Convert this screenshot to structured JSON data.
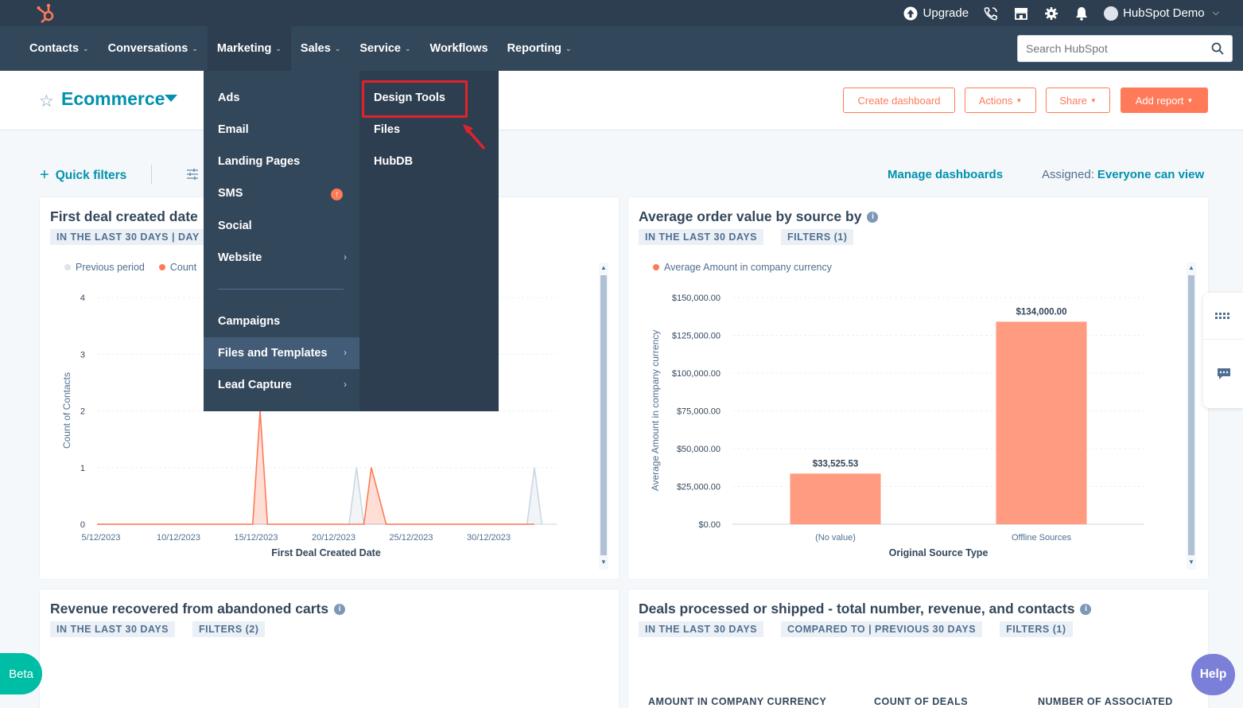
{
  "topbar": {
    "upgrade_label": "Upgrade",
    "account_label": "HubSpot Demo"
  },
  "nav": {
    "items": [
      {
        "label": "Contacts",
        "has_menu": true
      },
      {
        "label": "Conversations",
        "has_menu": true
      },
      {
        "label": "Marketing",
        "has_menu": true,
        "active": true
      },
      {
        "label": "Sales",
        "has_menu": true
      },
      {
        "label": "Service",
        "has_menu": true
      },
      {
        "label": "Workflows",
        "has_menu": false
      },
      {
        "label": "Reporting",
        "has_menu": true
      }
    ],
    "search_placeholder": "Search HubSpot"
  },
  "header": {
    "dashboard_title": "Ecommerce",
    "buttons": {
      "create": "Create dashboard",
      "actions": "Actions",
      "share": "Share",
      "add_report": "Add report"
    }
  },
  "toolbar": {
    "quick_filters": "Quick filters",
    "manage": "Manage dashboards",
    "assigned_label": "Assigned:",
    "assigned_value": "Everyone can view"
  },
  "marketing_menu": {
    "left": [
      {
        "label": "Ads"
      },
      {
        "label": "Email"
      },
      {
        "label": "Landing Pages"
      },
      {
        "label": "SMS"
      },
      {
        "label": "Social"
      },
      {
        "label": "Website"
      },
      {
        "label": "Campaigns"
      },
      {
        "label": "Files and Templates"
      },
      {
        "label": "Lead Capture"
      }
    ],
    "right": [
      {
        "label": "Design Tools"
      },
      {
        "label": "Files"
      },
      {
        "label": "HubDB"
      }
    ]
  },
  "cards": {
    "deals": {
      "title": "First deal created date",
      "tag1": "IN THE LAST 30 DAYS | DAY",
      "legend_prev": "Previous period",
      "legend_count": "Count",
      "ylabel": "Count of Contacts",
      "xlabel": "First Deal Created Date"
    },
    "aov": {
      "title": "Average order value by source by",
      "tag1": "IN THE LAST 30 DAYS",
      "tag2": "FILTERS (1)",
      "legend": "Average Amount in company currency",
      "ylabel": "Average Amount in company currency",
      "xlabel": "Original Source Type"
    },
    "revenue": {
      "title": "Revenue recovered from abandoned carts",
      "tag1": "IN THE LAST 30 DAYS",
      "tag2": "FILTERS (2)"
    },
    "processed": {
      "title": "Deals processed or shipped - total number, revenue, and contacts",
      "tag1": "IN THE LAST 30 DAYS",
      "tag2": "COMPARED TO | PREVIOUS 30 DAYS",
      "tag3": "FILTERS (1)",
      "col1": "AMOUNT IN COMPANY CURRENCY",
      "col2": "COUNT OF DEALS",
      "col3": "NUMBER OF ASSOCIATED"
    }
  },
  "chart_data": [
    {
      "type": "area",
      "title": "First deal created date",
      "xlabel": "First Deal Created Date",
      "ylabel": "Count of Contacts",
      "yticks": [
        "0",
        "1",
        "2",
        "3",
        "4"
      ],
      "ylim": [
        0,
        4
      ],
      "xticks": [
        "5/12/2023",
        "10/12/2023",
        "15/12/2023",
        "20/12/2023",
        "25/12/2023",
        "30/12/2023"
      ],
      "series": [
        {
          "name": "Previous period",
          "color": "#cbd6e2",
          "points": [
            {
              "x": 0,
              "y": 0
            },
            {
              "x": 17,
              "y": 0
            },
            {
              "x": 17.5,
              "y": 1
            },
            {
              "x": 18,
              "y": 0
            },
            {
              "x": 29,
              "y": 0
            },
            {
              "x": 29.5,
              "y": 1
            },
            {
              "x": 30,
              "y": 0
            }
          ]
        },
        {
          "name": "Count",
          "color": "#ff7a59",
          "points": [
            {
              "x": 0,
              "y": 0
            },
            {
              "x": 10.5,
              "y": 0
            },
            {
              "x": 11,
              "y": 2
            },
            {
              "x": 11.5,
              "y": 0
            },
            {
              "x": 18,
              "y": 0
            },
            {
              "x": 18.5,
              "y": 1
            },
            {
              "x": 19.5,
              "y": 0
            },
            {
              "x": 29.5,
              "y": 0
            }
          ]
        }
      ]
    },
    {
      "type": "bar",
      "title": "Average order value by source by",
      "xlabel": "Original Source Type",
      "ylabel": "Average Amount in company currency",
      "categories": [
        "(No value)",
        "Offline Sources"
      ],
      "values": [
        33525.53,
        134000
      ],
      "value_labels": [
        "$33,525.53",
        "$134,000.00"
      ],
      "yticks": [
        "$0.00",
        "$25,000.00",
        "$50,000.00",
        "$75,000.00",
        "$100,000.00",
        "$125,000.00",
        "$150,000.00"
      ],
      "ylim": [
        0,
        150000
      ],
      "color": "#ff9b80"
    }
  ],
  "widgets": {
    "beta": "Beta",
    "help": "Help"
  }
}
